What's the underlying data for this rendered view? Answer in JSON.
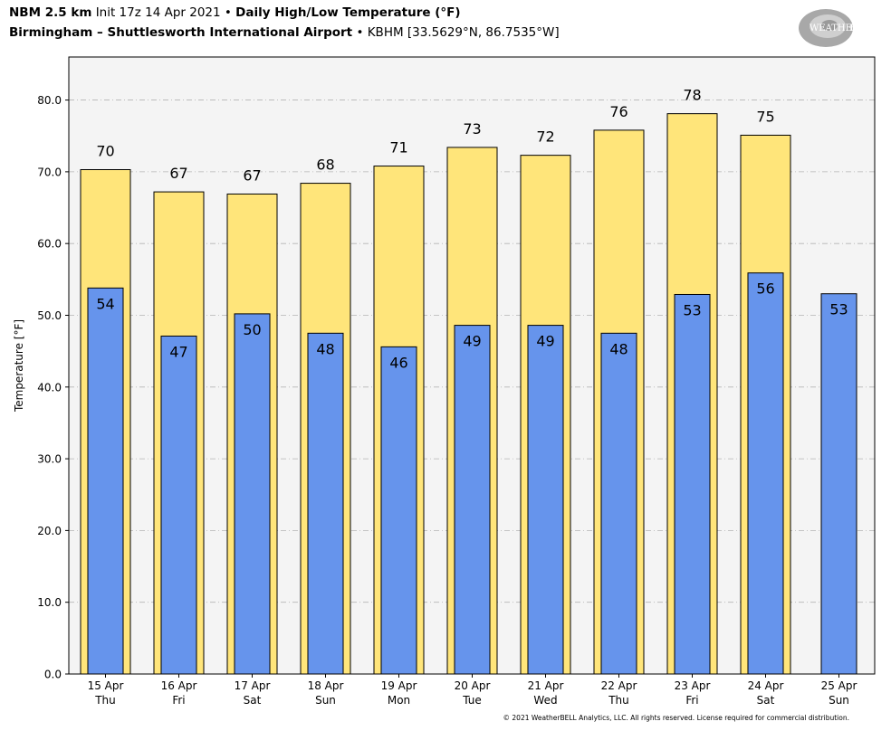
{
  "header": {
    "model": "NBM 2.5 km",
    "init": "Init 17z 14 Apr 2021",
    "sep1": "•",
    "product": "Daily High/Low Temperature (°F)",
    "location": "Birmingham – Shuttlesworth International Airport",
    "sep2": "•",
    "station": "KBHM [33.5629°N, 86.7535°W]"
  },
  "logo": {
    "text_big": "WEATHER",
    "text_bell": "BELL"
  },
  "footer": "© 2021 WeatherBELL Analytics, LLC. All rights reserved. License required for commercial distribution.",
  "colors": {
    "high": "#ffe57a",
    "low": "#6694ec",
    "plot_bg": "#f4f4f4",
    "grid": "#b4b4b4"
  },
  "chart_data": {
    "type": "bar",
    "title": "Daily High/Low Temperature (°F)",
    "ylabel": "Temperature [°F]",
    "ylim": [
      0,
      86
    ],
    "yticks": [
      "0.0",
      "10.0",
      "20.0",
      "30.0",
      "40.0",
      "50.0",
      "60.0",
      "70.0",
      "80.0"
    ],
    "grid": true,
    "categories": [
      "15 Apr",
      "16 Apr",
      "17 Apr",
      "18 Apr",
      "19 Apr",
      "20 Apr",
      "21 Apr",
      "22 Apr",
      "23 Apr",
      "24 Apr",
      "25 Apr"
    ],
    "days": [
      "Thu",
      "Fri",
      "Sat",
      "Sun",
      "Mon",
      "Tue",
      "Wed",
      "Thu",
      "Fri",
      "Sat",
      "Sun"
    ],
    "series": [
      {
        "values": [
          70.3,
          67.2,
          66.9,
          68.4,
          70.8,
          73.4,
          72.3,
          75.8,
          78.1,
          75.1,
          null
        ],
        "labels": [
          "70",
          "67",
          "67",
          "68",
          "71",
          "73",
          "72",
          "76",
          "78",
          "75",
          ""
        ]
      },
      {
        "values": [
          53.8,
          47.1,
          50.2,
          47.5,
          45.6,
          48.6,
          48.6,
          47.5,
          52.9,
          55.9,
          53.0
        ],
        "labels": [
          "54",
          "47",
          "50",
          "48",
          "46",
          "49",
          "49",
          "48",
          "53",
          "56",
          "53"
        ]
      }
    ]
  }
}
